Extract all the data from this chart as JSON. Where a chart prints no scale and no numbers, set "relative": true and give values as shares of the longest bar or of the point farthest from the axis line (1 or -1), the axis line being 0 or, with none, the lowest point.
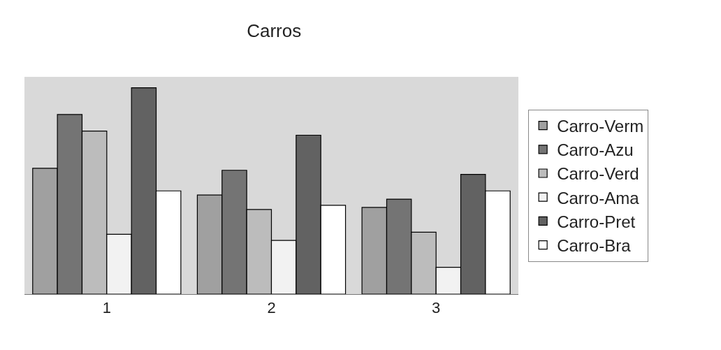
{
  "chart_data": {
    "type": "bar",
    "title": "Carros",
    "categories": [
      "1",
      "2",
      "3"
    ],
    "relative": true,
    "legend": "right",
    "series": [
      {
        "name": "Carro-Verm",
        "color": "#a0a0a0",
        "values": [
          0.61,
          0.48,
          0.42
        ]
      },
      {
        "name": "Carro-Azu",
        "color": "#747474",
        "values": [
          0.87,
          0.6,
          0.46
        ]
      },
      {
        "name": "Carro-Verd",
        "color": "#bcbcbc",
        "values": [
          0.79,
          0.41,
          0.3
        ]
      },
      {
        "name": "Carro-Ama",
        "color": "#f2f2f2",
        "values": [
          0.29,
          0.26,
          0.13
        ]
      },
      {
        "name": "Carro-Pret",
        "color": "#626262",
        "values": [
          1,
          0.77,
          0.58
        ]
      },
      {
        "name": "Carro-Bra",
        "color": "#ffffff",
        "values": [
          0.5,
          0.43,
          0.5
        ]
      }
    ]
  }
}
